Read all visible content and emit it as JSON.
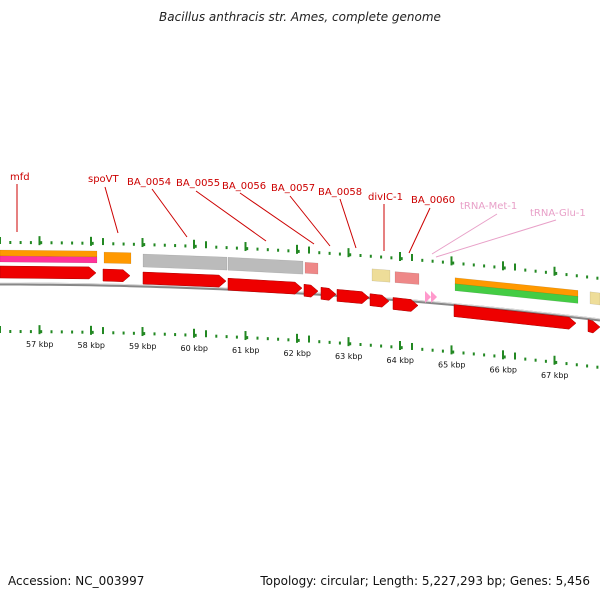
{
  "title": "Bacillus anthracis str. Ames, complete genome",
  "footer": {
    "accession": "Accession: NC_003997",
    "topology": "Topology: circular; Length: 5,227,293 bp; Genes: 5,456"
  },
  "colors": {
    "gene_label": "#cc0000",
    "trna_label": "#e8a0c8",
    "cds": "#ee0000",
    "tick": "#228822",
    "backbone": "#888888",
    "orange_feature": "#ff9900",
    "pink_feature": "#ff3399",
    "grey_feature": "#bbbbbb",
    "light_red_feature": "#ee8888",
    "pale_yellow_feature": "#eedd99",
    "green_feature": "#44cc44",
    "trna": "#ff99cc"
  },
  "labels": [
    {
      "text": "mfd",
      "kind": "gene"
    },
    {
      "text": "spoVT",
      "kind": "gene"
    },
    {
      "text": "BA_0054",
      "kind": "gene"
    },
    {
      "text": "BA_0055",
      "kind": "gene"
    },
    {
      "text": "BA_0056",
      "kind": "gene"
    },
    {
      "text": "BA_0057",
      "kind": "gene"
    },
    {
      "text": "BA_0058",
      "kind": "gene"
    },
    {
      "text": "divIC-1",
      "kind": "gene"
    },
    {
      "text": "BA_0060",
      "kind": "gene"
    },
    {
      "text": "tRNA-Met-1",
      "kind": "trna"
    },
    {
      "text": "tRNA-Glu-1",
      "kind": "trna"
    }
  ],
  "scale_labels": [
    "57 kbp",
    "58 kbp",
    "59 kbp",
    "60 kbp",
    "61 kbp",
    "62 kbp",
    "63 kbp",
    "64 kbp",
    "65 kbp",
    "66 kbp",
    "67 kbp"
  ]
}
